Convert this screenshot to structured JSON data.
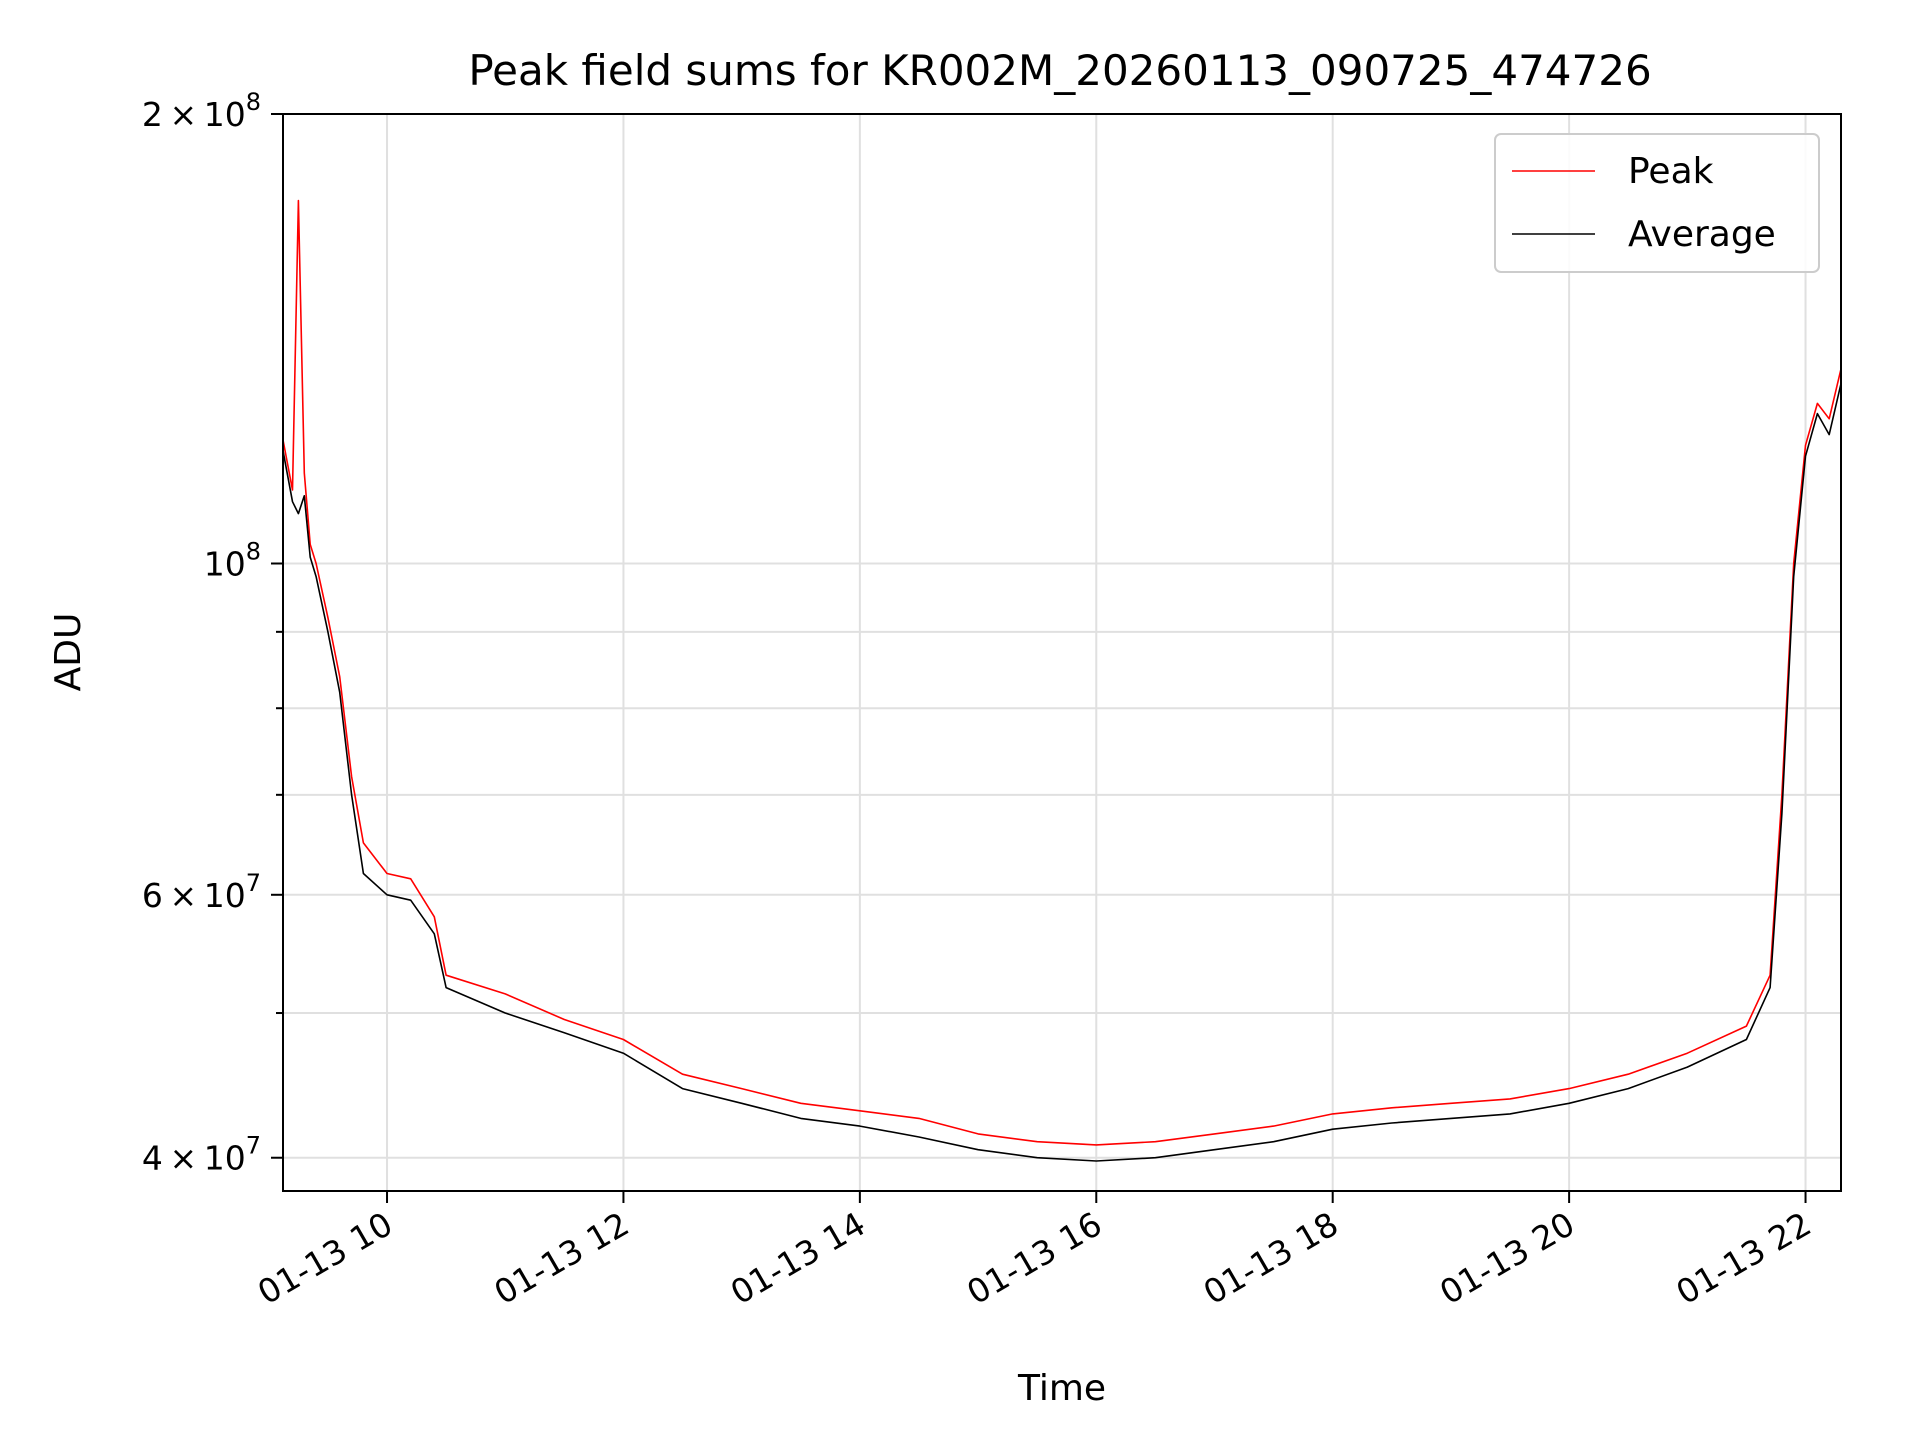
{
  "chart_data": {
    "type": "line",
    "title": "Peak field sums for KR002M_20260113_090725_474726",
    "xlabel": "Time",
    "ylabel": "ADU",
    "yscale": "log",
    "ylim": [
      38000000,
      200000000
    ],
    "xlim_hours": [
      9.12,
      22.3
    ],
    "grid": true,
    "legend_position": "top-right",
    "x_ticks": [
      {
        "value": 10,
        "label": "01-13 10"
      },
      {
        "value": 12,
        "label": "01-13 12"
      },
      {
        "value": 14,
        "label": "01-13 14"
      },
      {
        "value": 16,
        "label": "01-13 16"
      },
      {
        "value": 18,
        "label": "01-13 18"
      },
      {
        "value": 20,
        "label": "01-13 20"
      },
      {
        "value": 22,
        "label": "01-13 22"
      }
    ],
    "y_ticks": [
      {
        "value": 40000000,
        "mantissa": "4",
        "exponent": "7"
      },
      {
        "value": 60000000,
        "mantissa": "6",
        "exponent": "7"
      },
      {
        "value": 100000000,
        "mantissa": "",
        "exponent": "8"
      },
      {
        "value": 200000000,
        "mantissa": "2",
        "exponent": "8"
      }
    ],
    "y_minor_ticks": [
      50000000,
      70000000,
      80000000,
      90000000
    ],
    "series": [
      {
        "name": "Peak",
        "color": "#ff0000",
        "x_hours": [
          9.12,
          9.2,
          9.25,
          9.3,
          9.35,
          9.4,
          9.5,
          9.6,
          9.7,
          9.8,
          10.0,
          10.2,
          10.4,
          10.5,
          11.0,
          11.5,
          12.0,
          12.5,
          13.0,
          13.5,
          14.0,
          14.5,
          15.0,
          15.5,
          16.0,
          16.5,
          17.0,
          17.5,
          18.0,
          18.5,
          19.0,
          19.5,
          20.0,
          20.5,
          21.0,
          21.5,
          21.7,
          21.8,
          21.9,
          22.0,
          22.1,
          22.2,
          22.3
        ],
        "values": [
          121000000,
          112000000,
          175000000,
          115000000,
          103000000,
          100000000,
          92000000,
          84000000,
          72000000,
          65000000,
          62000000,
          61500000,
          58000000,
          53000000,
          51500000,
          49500000,
          48000000,
          45500000,
          44500000,
          43500000,
          43000000,
          42500000,
          41500000,
          41000000,
          40800000,
          41000000,
          41500000,
          42000000,
          42800000,
          43200000,
          43500000,
          43800000,
          44500000,
          45500000,
          47000000,
          49000000,
          53000000,
          70000000,
          100000000,
          120000000,
          128000000,
          125000000,
          135000000
        ]
      },
      {
        "name": "Average",
        "color": "#000000",
        "x_hours": [
          9.12,
          9.2,
          9.25,
          9.3,
          9.35,
          9.4,
          9.5,
          9.6,
          9.7,
          9.8,
          10.0,
          10.2,
          10.4,
          10.5,
          11.0,
          11.5,
          12.0,
          12.5,
          13.0,
          13.5,
          14.0,
          14.5,
          15.0,
          15.5,
          16.0,
          16.5,
          17.0,
          17.5,
          18.0,
          18.5,
          19.0,
          19.5,
          20.0,
          20.5,
          21.0,
          21.5,
          21.7,
          21.8,
          21.9,
          22.0,
          22.1,
          22.2,
          22.3
        ],
        "values": [
          119000000,
          110000000,
          108000000,
          111000000,
          101000000,
          98000000,
          90000000,
          82000000,
          70000000,
          62000000,
          60000000,
          59500000,
          56500000,
          52000000,
          50000000,
          48500000,
          47000000,
          44500000,
          43500000,
          42500000,
          42000000,
          41300000,
          40500000,
          40000000,
          39800000,
          40000000,
          40500000,
          41000000,
          41800000,
          42200000,
          42500000,
          42800000,
          43500000,
          44500000,
          46000000,
          48000000,
          52000000,
          68000000,
          98000000,
          118000000,
          126000000,
          122000000,
          132000000
        ]
      }
    ]
  }
}
